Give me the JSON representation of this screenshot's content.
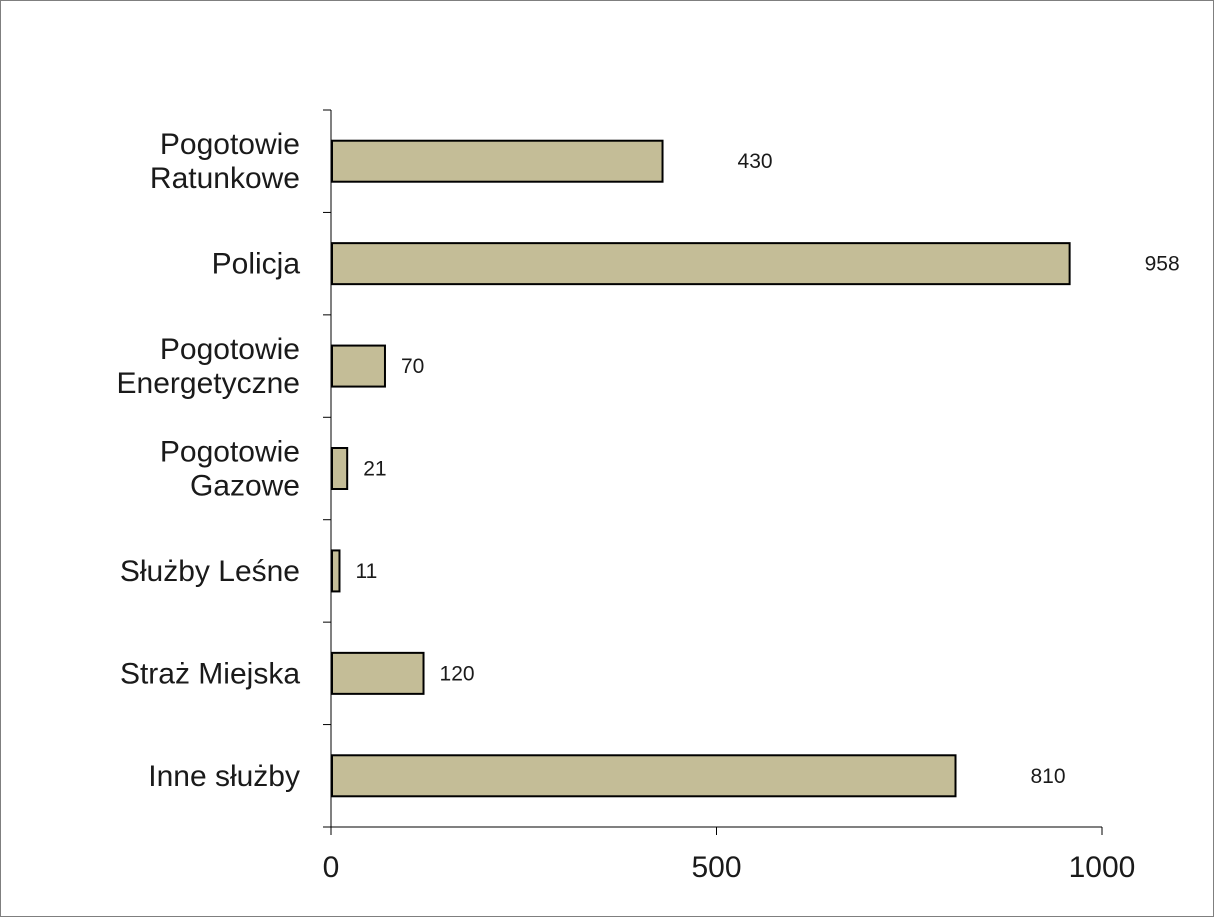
{
  "chart_data": {
    "type": "bar",
    "orientation": "horizontal",
    "categories": [
      [
        "Pogotowie",
        "Ratunkowe"
      ],
      [
        "Policja"
      ],
      [
        "Pogotowie",
        "Energetyczne"
      ],
      [
        "Pogotowie",
        "Gazowe"
      ],
      [
        "Służby Leśne"
      ],
      [
        "Straż Miejska"
      ],
      [
        "Inne służby"
      ]
    ],
    "values": [
      430,
      958,
      70,
      21,
      11,
      120,
      810
    ],
    "value_labels": [
      "430",
      "958",
      "70",
      "21",
      "11",
      "120",
      "810"
    ],
    "xlim": [
      0,
      1000
    ],
    "x_ticks": [
      0,
      500,
      1000
    ],
    "x_tick_labels": [
      "0",
      "500",
      "1000"
    ],
    "title": "",
    "xlabel": "",
    "ylabel": "",
    "grid": false,
    "legend": "none",
    "colors": {
      "bar_fill": "#c4bd97",
      "bar_stroke": "#000000",
      "axis": "#000000",
      "frame": "#7f7f7f"
    }
  }
}
